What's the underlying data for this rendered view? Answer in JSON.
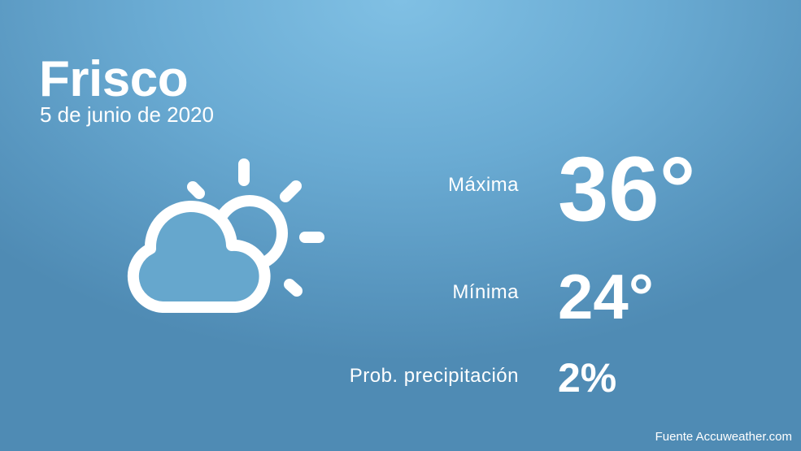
{
  "city": "Frisco",
  "date": "5 de junio de 2020",
  "weather_icon": "partly-cloudy-icon",
  "stats": {
    "max_label": "Máxima",
    "max_value": "36°",
    "min_label": "Mínima",
    "min_value": "24°",
    "precip_label": "Prob. precipitación",
    "precip_value": "2%"
  },
  "source": "Fuente Accuweather.com",
  "colors": {
    "background": "#6aabd3",
    "text": "#ffffff"
  }
}
